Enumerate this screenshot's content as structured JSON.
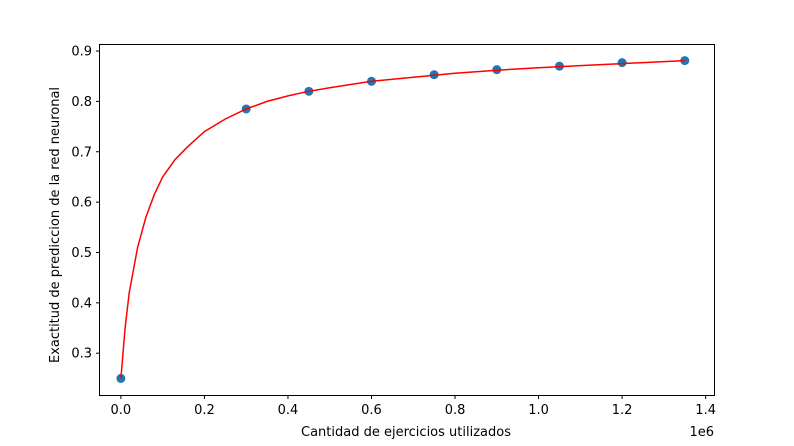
{
  "chart_data": {
    "type": "scatter",
    "xlabel": "Cantidad de ejercicios utilizados",
    "ylabel": "Exactitud de prediccion de la red neuronal",
    "x_offset_label": "1e6",
    "xlim": [
      -50000,
      1420000
    ],
    "ylim": [
      0.217,
      0.912
    ],
    "x_ticks": [
      0,
      200000,
      400000,
      600000,
      800000,
      1000000,
      1200000,
      1400000
    ],
    "x_tick_labels": [
      "0.0",
      "0.2",
      "0.4",
      "0.6",
      "0.8",
      "1.0",
      "1.2",
      "1.4"
    ],
    "y_ticks": [
      0.3,
      0.4,
      0.5,
      0.6,
      0.7,
      0.8,
      0.9
    ],
    "y_tick_labels": [
      "0.3",
      "0.4",
      "0.5",
      "0.6",
      "0.7",
      "0.8",
      "0.9"
    ],
    "grid": false,
    "series": [
      {
        "kind": "scatter",
        "color": "#1f77b4",
        "x": [
          0,
          300000,
          450000,
          600000,
          750000,
          900000,
          1050000,
          1200000,
          1350000
        ],
        "y": [
          0.25,
          0.785,
          0.82,
          0.84,
          0.853,
          0.863,
          0.87,
          0.877,
          0.881
        ]
      },
      {
        "kind": "line",
        "color": "#ff0000",
        "x": [
          0,
          10000,
          20000,
          40000,
          60000,
          80000,
          100000,
          130000,
          160000,
          200000,
          250000,
          300000,
          350000,
          400000,
          450000,
          500000,
          600000,
          700000,
          800000,
          900000,
          1000000,
          1100000,
          1200000,
          1300000,
          1350000
        ],
        "y": [
          0.25,
          0.35,
          0.42,
          0.51,
          0.57,
          0.615,
          0.65,
          0.685,
          0.71,
          0.74,
          0.765,
          0.785,
          0.8,
          0.811,
          0.82,
          0.827,
          0.84,
          0.848,
          0.856,
          0.862,
          0.867,
          0.871,
          0.875,
          0.879,
          0.881
        ]
      }
    ]
  }
}
